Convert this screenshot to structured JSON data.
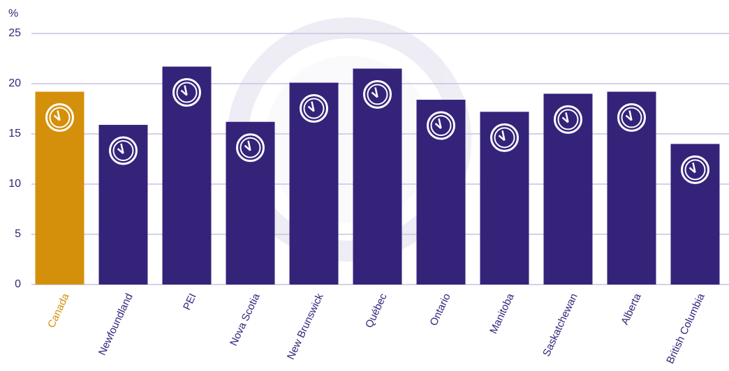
{
  "chart_data": {
    "type": "bar",
    "y_label": "%",
    "categories": [
      "Canada",
      "Newfoundland",
      "PEI",
      "Nova Scotia",
      "New Brunswick",
      "Québec",
      "Ontario",
      "Manitoba",
      "Saskatchewan",
      "Alberta",
      "British Columbia"
    ],
    "values": [
      19.2,
      15.9,
      21.7,
      16.2,
      20.1,
      21.5,
      18.4,
      17.2,
      19.0,
      19.2,
      14.0
    ],
    "colors": [
      "#d4900a",
      "#35237a",
      "#35237a",
      "#35237a",
      "#35237a",
      "#35237a",
      "#35237a",
      "#35237a",
      "#35237a",
      "#35237a",
      "#35237a"
    ],
    "ylim": [
      0,
      25
    ],
    "yticks": [
      0,
      5,
      10,
      15,
      20,
      25
    ],
    "grid": true
  }
}
